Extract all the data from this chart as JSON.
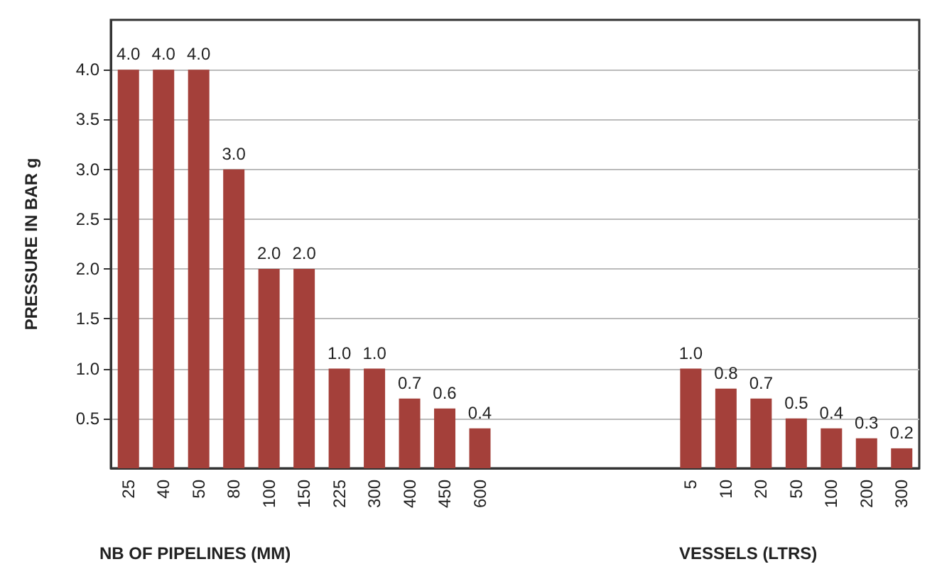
{
  "chart_data": {
    "type": "bar",
    "ylabel": "PRESSURE IN BAR g",
    "xlabel": "NB OF PIPELINES (MM)",
    "annotations": [
      "VESSELS (LTRS)"
    ],
    "categories": [
      "25",
      "40",
      "50",
      "80",
      "100",
      "150",
      "225",
      "300",
      "400",
      "450",
      "600",
      null,
      null,
      null,
      null,
      null,
      "5",
      "10",
      "20",
      "50",
      "100",
      "200",
      "300"
    ],
    "values": [
      4.0,
      4.0,
      4.0,
      3.0,
      2.0,
      2.0,
      1.0,
      1.0,
      0.7,
      0.6,
      0.4,
      null,
      null,
      null,
      null,
      null,
      1.0,
      0.8,
      0.7,
      0.5,
      0.4,
      0.3,
      0.2
    ],
    "value_labels": [
      "4.0",
      "4.0",
      "4.0",
      "3.0",
      "2.0",
      "2.0",
      "1.0",
      "1.0",
      "0.7",
      "0.6",
      "0.4",
      null,
      null,
      null,
      null,
      null,
      "1.0",
      "0.8",
      "0.7",
      "0.5",
      "0.4",
      "0.3",
      "0.2"
    ],
    "color": "#a4403a",
    "ylim": [
      0,
      4.5
    ],
    "yticks": [
      0.5,
      {
        "value": 1,
        "label": "1.0"
      },
      1.5,
      {
        "value": 2,
        "label": "2.0"
      },
      2.5,
      {
        "value": 3,
        "label": "3.0"
      },
      3.5,
      {
        "value": 4,
        "label": "4.0"
      }
    ],
    "grid": "y"
  }
}
